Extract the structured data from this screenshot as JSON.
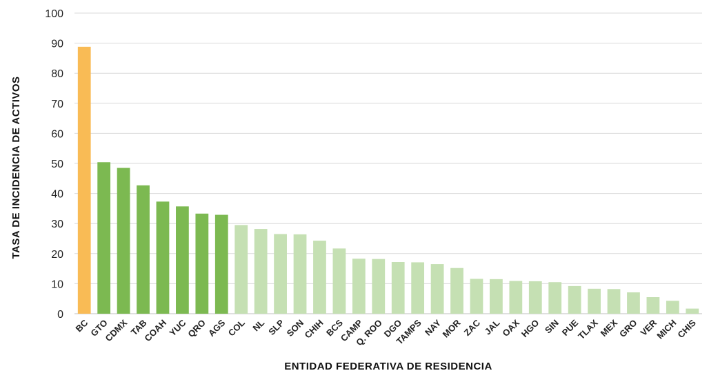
{
  "chart_data": {
    "type": "bar",
    "title": "",
    "xlabel": "ENTIDAD FEDERATIVA DE RESIDENCIA",
    "ylabel": "TASA DE INCIDENCIA DE ACTIVOS",
    "ylim": [
      0,
      100
    ],
    "yticks": [
      0,
      10,
      20,
      30,
      40,
      50,
      60,
      70,
      80,
      90,
      100
    ],
    "grid": true,
    "categories": [
      "BC",
      "GTO",
      "CDMX",
      "TAB",
      "COAH",
      "YUC",
      "QRO",
      "AGS",
      "COL",
      "NL",
      "SLP",
      "SON",
      "CHIH",
      "BCS",
      "CAMP",
      "Q. ROO",
      "DGO",
      "TAMPS",
      "NAY",
      "MOR",
      "ZAC",
      "JAL",
      "OAX",
      "HGO",
      "SIN",
      "PUE",
      "TLAX",
      "MEX",
      "GRO",
      "VER",
      "MICH",
      "CHIS"
    ],
    "values": [
      88.8,
      50.4,
      48.5,
      42.7,
      37.3,
      35.7,
      33.3,
      32.9,
      29.5,
      28.2,
      26.5,
      26.4,
      24.3,
      21.7,
      18.3,
      18.2,
      17.2,
      17.1,
      16.5,
      15.2,
      11.6,
      11.5,
      10.9,
      10.8,
      10.5,
      9.2,
      8.3,
      8.2,
      7.1,
      5.5,
      4.3,
      1.7
    ],
    "bar_colors": {
      "highest": "#F9BB55",
      "high": "#7CB951",
      "medium": "#C5E0B3"
    },
    "color_group_per_bar": [
      "highest",
      "high",
      "high",
      "high",
      "high",
      "high",
      "high",
      "high",
      "medium",
      "medium",
      "medium",
      "medium",
      "medium",
      "medium",
      "medium",
      "medium",
      "medium",
      "medium",
      "medium",
      "medium",
      "medium",
      "medium",
      "medium",
      "medium",
      "medium",
      "medium",
      "medium",
      "medium",
      "medium",
      "medium",
      "medium",
      "medium"
    ]
  }
}
